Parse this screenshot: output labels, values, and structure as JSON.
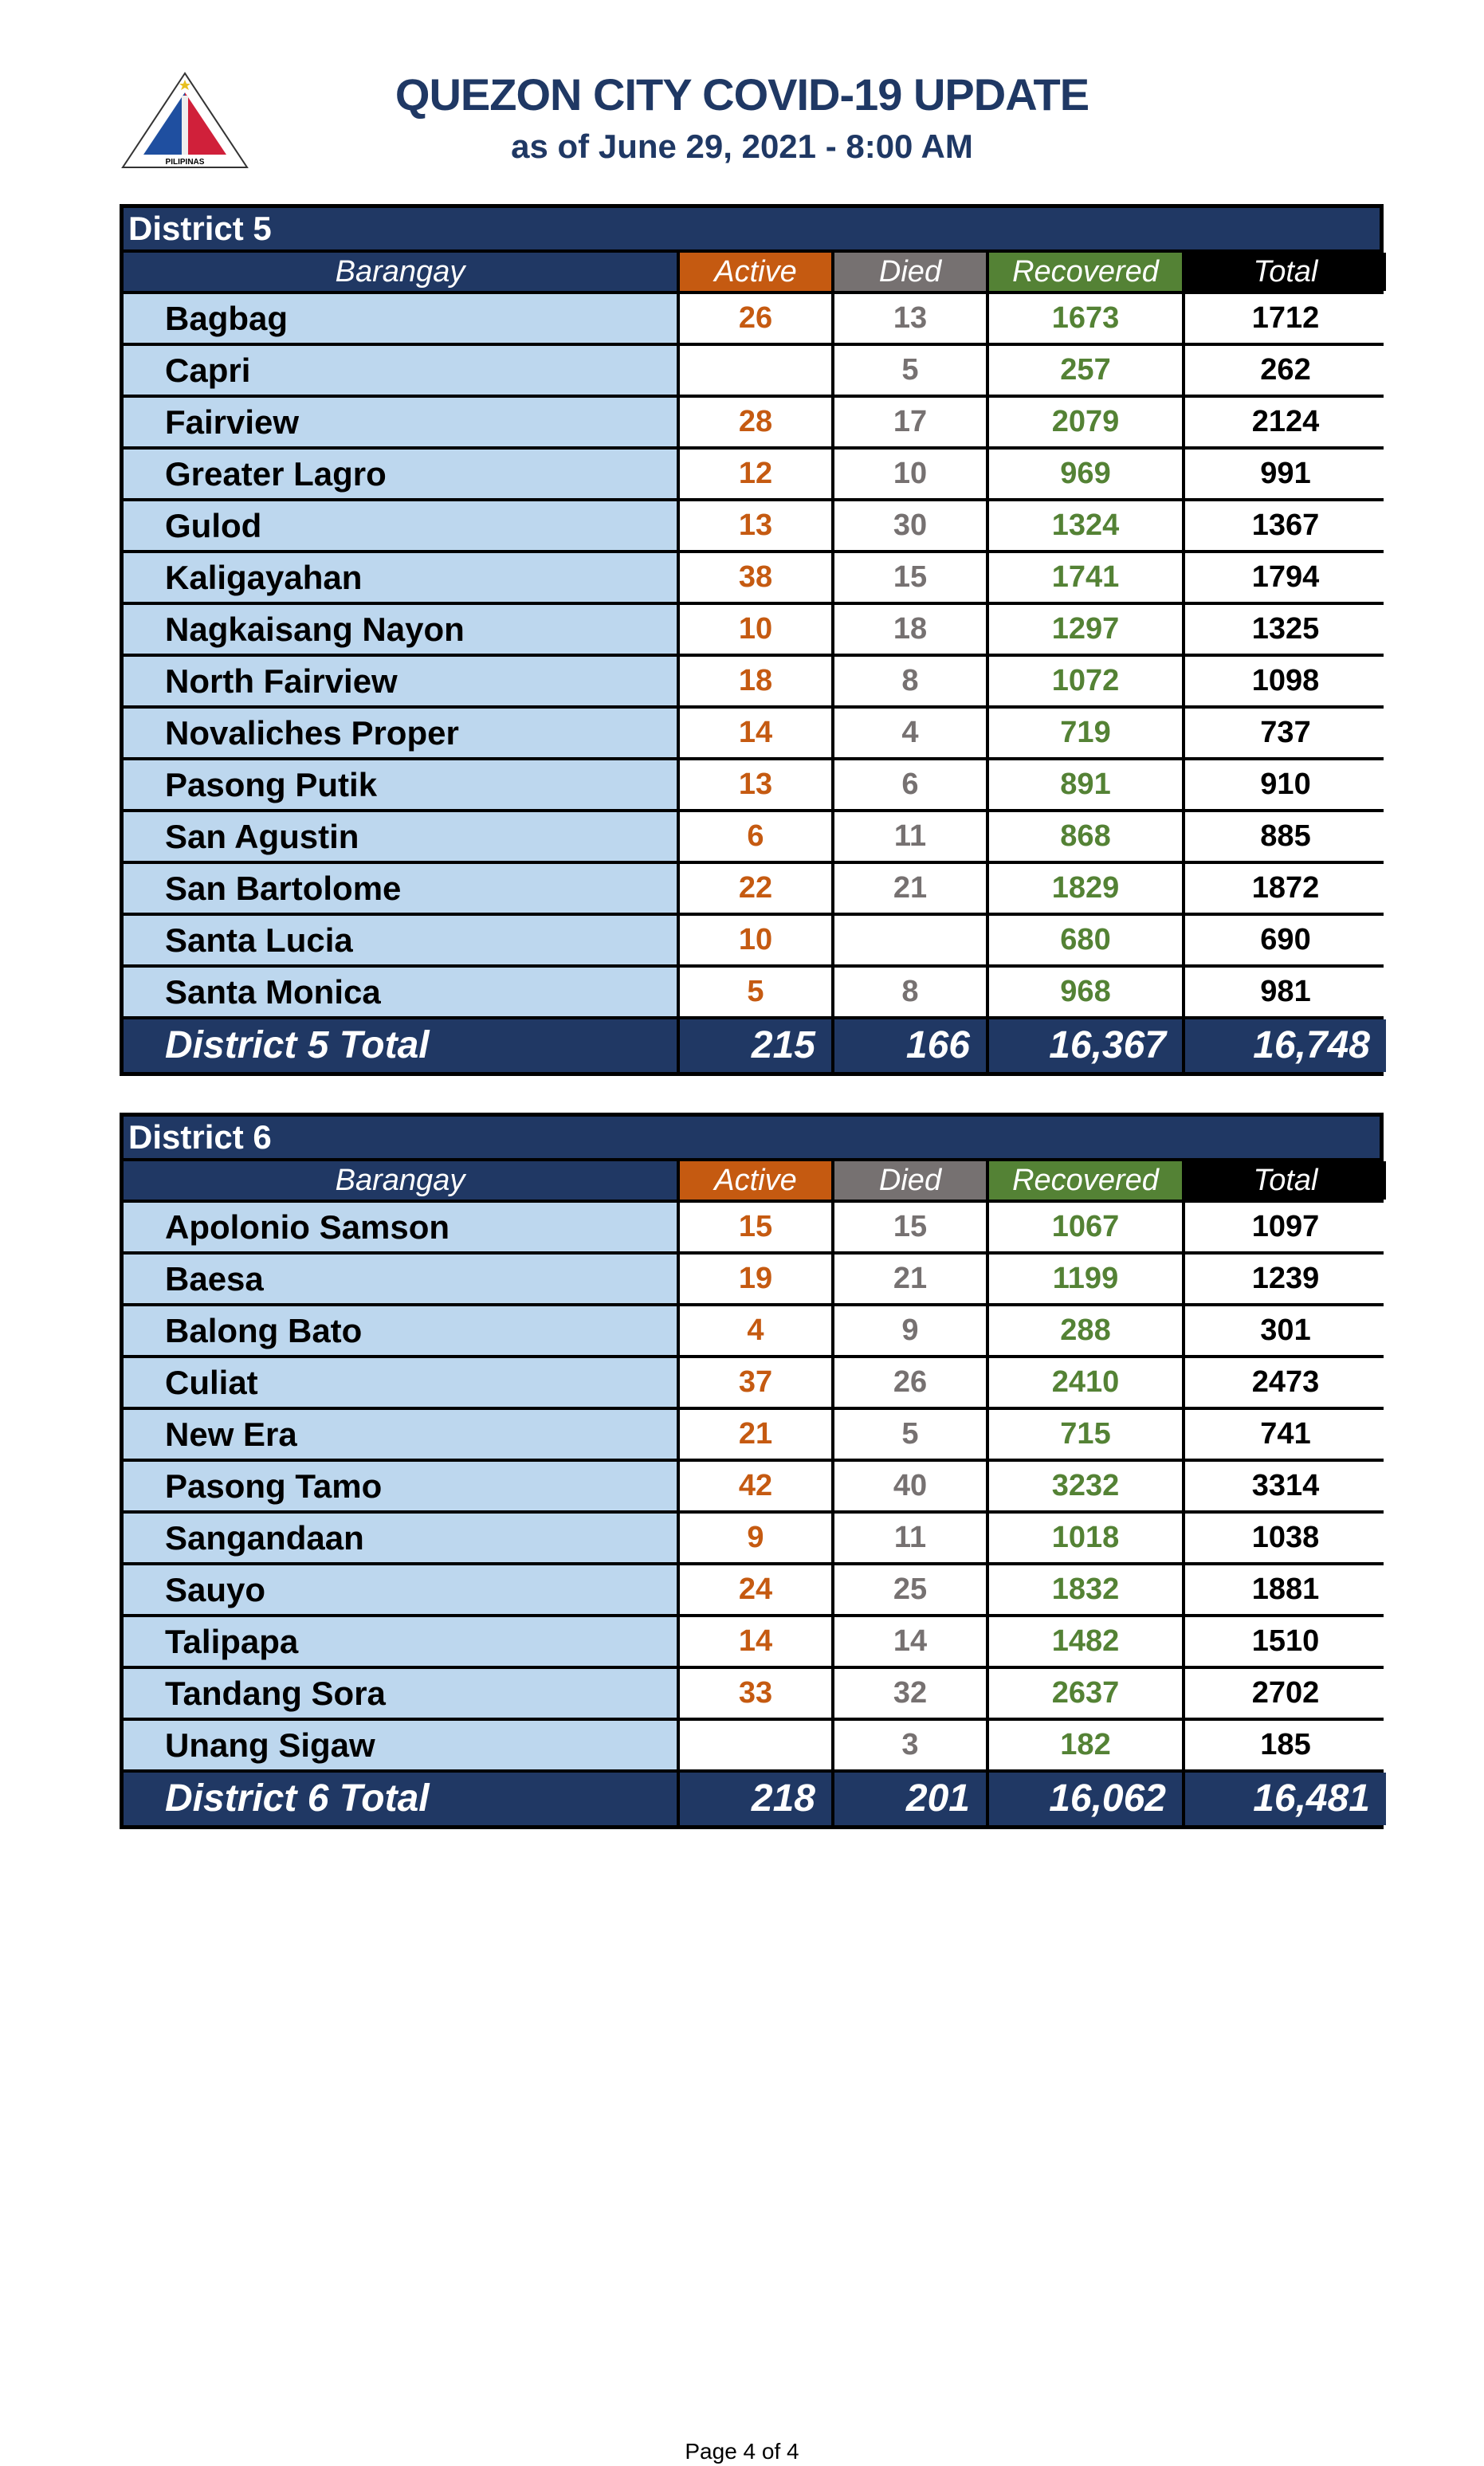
{
  "header": {
    "title": "QUEZON CITY COVID-19 UPDATE",
    "subtitle": "as of June 29, 2021 - 8:00 AM",
    "logo_text": "LUNGSOD QUEZON PILIPINAS"
  },
  "columns": [
    "Barangay",
    "Active",
    "Died",
    "Recovered",
    "Total"
  ],
  "colors": {
    "navy": "#203864",
    "active": "#c55a11",
    "died": "#767171",
    "recovered": "#548235",
    "barangay_bg": "#bdd7ee"
  },
  "districts": [
    {
      "name": "District 5",
      "rows": [
        [
          "Bagbag",
          "26",
          "13",
          "1673",
          "1712"
        ],
        [
          "Capri",
          "",
          "5",
          "257",
          "262"
        ],
        [
          "Fairview",
          "28",
          "17",
          "2079",
          "2124"
        ],
        [
          "Greater Lagro",
          "12",
          "10",
          "969",
          "991"
        ],
        [
          "Gulod",
          "13",
          "30",
          "1324",
          "1367"
        ],
        [
          "Kaligayahan",
          "38",
          "15",
          "1741",
          "1794"
        ],
        [
          "Nagkaisang Nayon",
          "10",
          "18",
          "1297",
          "1325"
        ],
        [
          "North Fairview",
          "18",
          "8",
          "1072",
          "1098"
        ],
        [
          "Novaliches Proper",
          "14",
          "4",
          "719",
          "737"
        ],
        [
          "Pasong Putik",
          "13",
          "6",
          "891",
          "910"
        ],
        [
          "San Agustin",
          "6",
          "11",
          "868",
          "885"
        ],
        [
          "San Bartolome",
          "22",
          "21",
          "1829",
          "1872"
        ],
        [
          "Santa Lucia",
          "10",
          "",
          "680",
          "690"
        ],
        [
          "Santa Monica",
          "5",
          "8",
          "968",
          "981"
        ]
      ],
      "total": [
        "District 5 Total",
        "215",
        "166",
        "16,367",
        "16,748"
      ]
    },
    {
      "name": "District 6",
      "rows": [
        [
          "Apolonio Samson",
          "15",
          "15",
          "1067",
          "1097"
        ],
        [
          "Baesa",
          "19",
          "21",
          "1199",
          "1239"
        ],
        [
          "Balong Bato",
          "4",
          "9",
          "288",
          "301"
        ],
        [
          "Culiat",
          "37",
          "26",
          "2410",
          "2473"
        ],
        [
          "New Era",
          "21",
          "5",
          "715",
          "741"
        ],
        [
          "Pasong Tamo",
          "42",
          "40",
          "3232",
          "3314"
        ],
        [
          "Sangandaan",
          "9",
          "11",
          "1018",
          "1038"
        ],
        [
          "Sauyo",
          "24",
          "25",
          "1832",
          "1881"
        ],
        [
          "Talipapa",
          "14",
          "14",
          "1482",
          "1510"
        ],
        [
          "Tandang Sora",
          "33",
          "32",
          "2637",
          "2702"
        ],
        [
          "Unang Sigaw",
          "",
          "3",
          "182",
          "185"
        ]
      ],
      "total": [
        "District 6 Total",
        "218",
        "201",
        "16,062",
        "16,481"
      ]
    }
  ],
  "footer": {
    "page": "Page 4 of 4"
  }
}
